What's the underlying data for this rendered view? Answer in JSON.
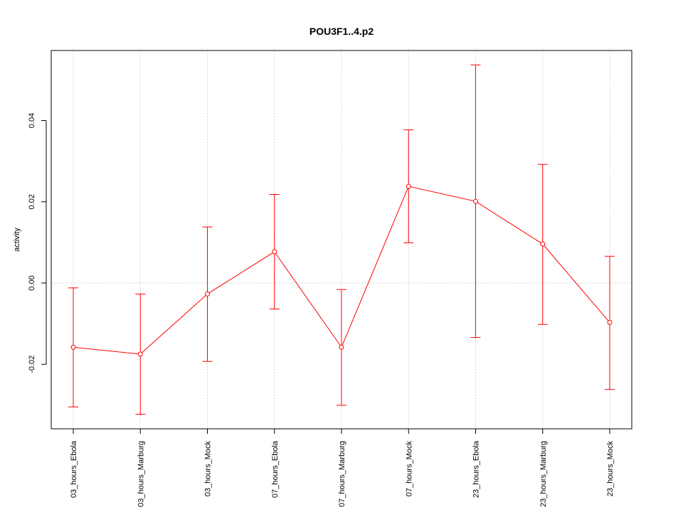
{
  "chart_data": {
    "type": "line",
    "title": "POU3F1..4.p2",
    "xlabel": "",
    "ylabel": "activity",
    "categories": [
      "03_hours_Ebola",
      "03_hours_Marburg",
      "03_hours_Mock",
      "07_hours_Ebola",
      "07_hours_Marburg",
      "07_hours_Mock",
      "23_hours_Ebola",
      "23_hours_Marburg",
      "23_hours_Mock"
    ],
    "series": [
      {
        "values": [
          -0.0158,
          -0.0175,
          -0.0027,
          0.0077,
          -0.0158,
          0.0238,
          0.0201,
          0.0096,
          -0.0097
        ],
        "error_lower": [
          -0.0305,
          -0.0323,
          -0.0193,
          -0.0064,
          -0.0301,
          0.0099,
          -0.0134,
          -0.0102,
          -0.0262
        ],
        "error_upper": [
          -0.0012,
          -0.0027,
          0.0138,
          0.0218,
          -0.0016,
          0.0377,
          0.0537,
          0.0292,
          0.0066
        ],
        "color": "#ff0000"
      }
    ],
    "yticks": [
      "-0.02",
      "0.00",
      "0.02",
      "0.04"
    ],
    "ylim": [
      -0.0358,
      0.0577
    ],
    "grid": true
  }
}
